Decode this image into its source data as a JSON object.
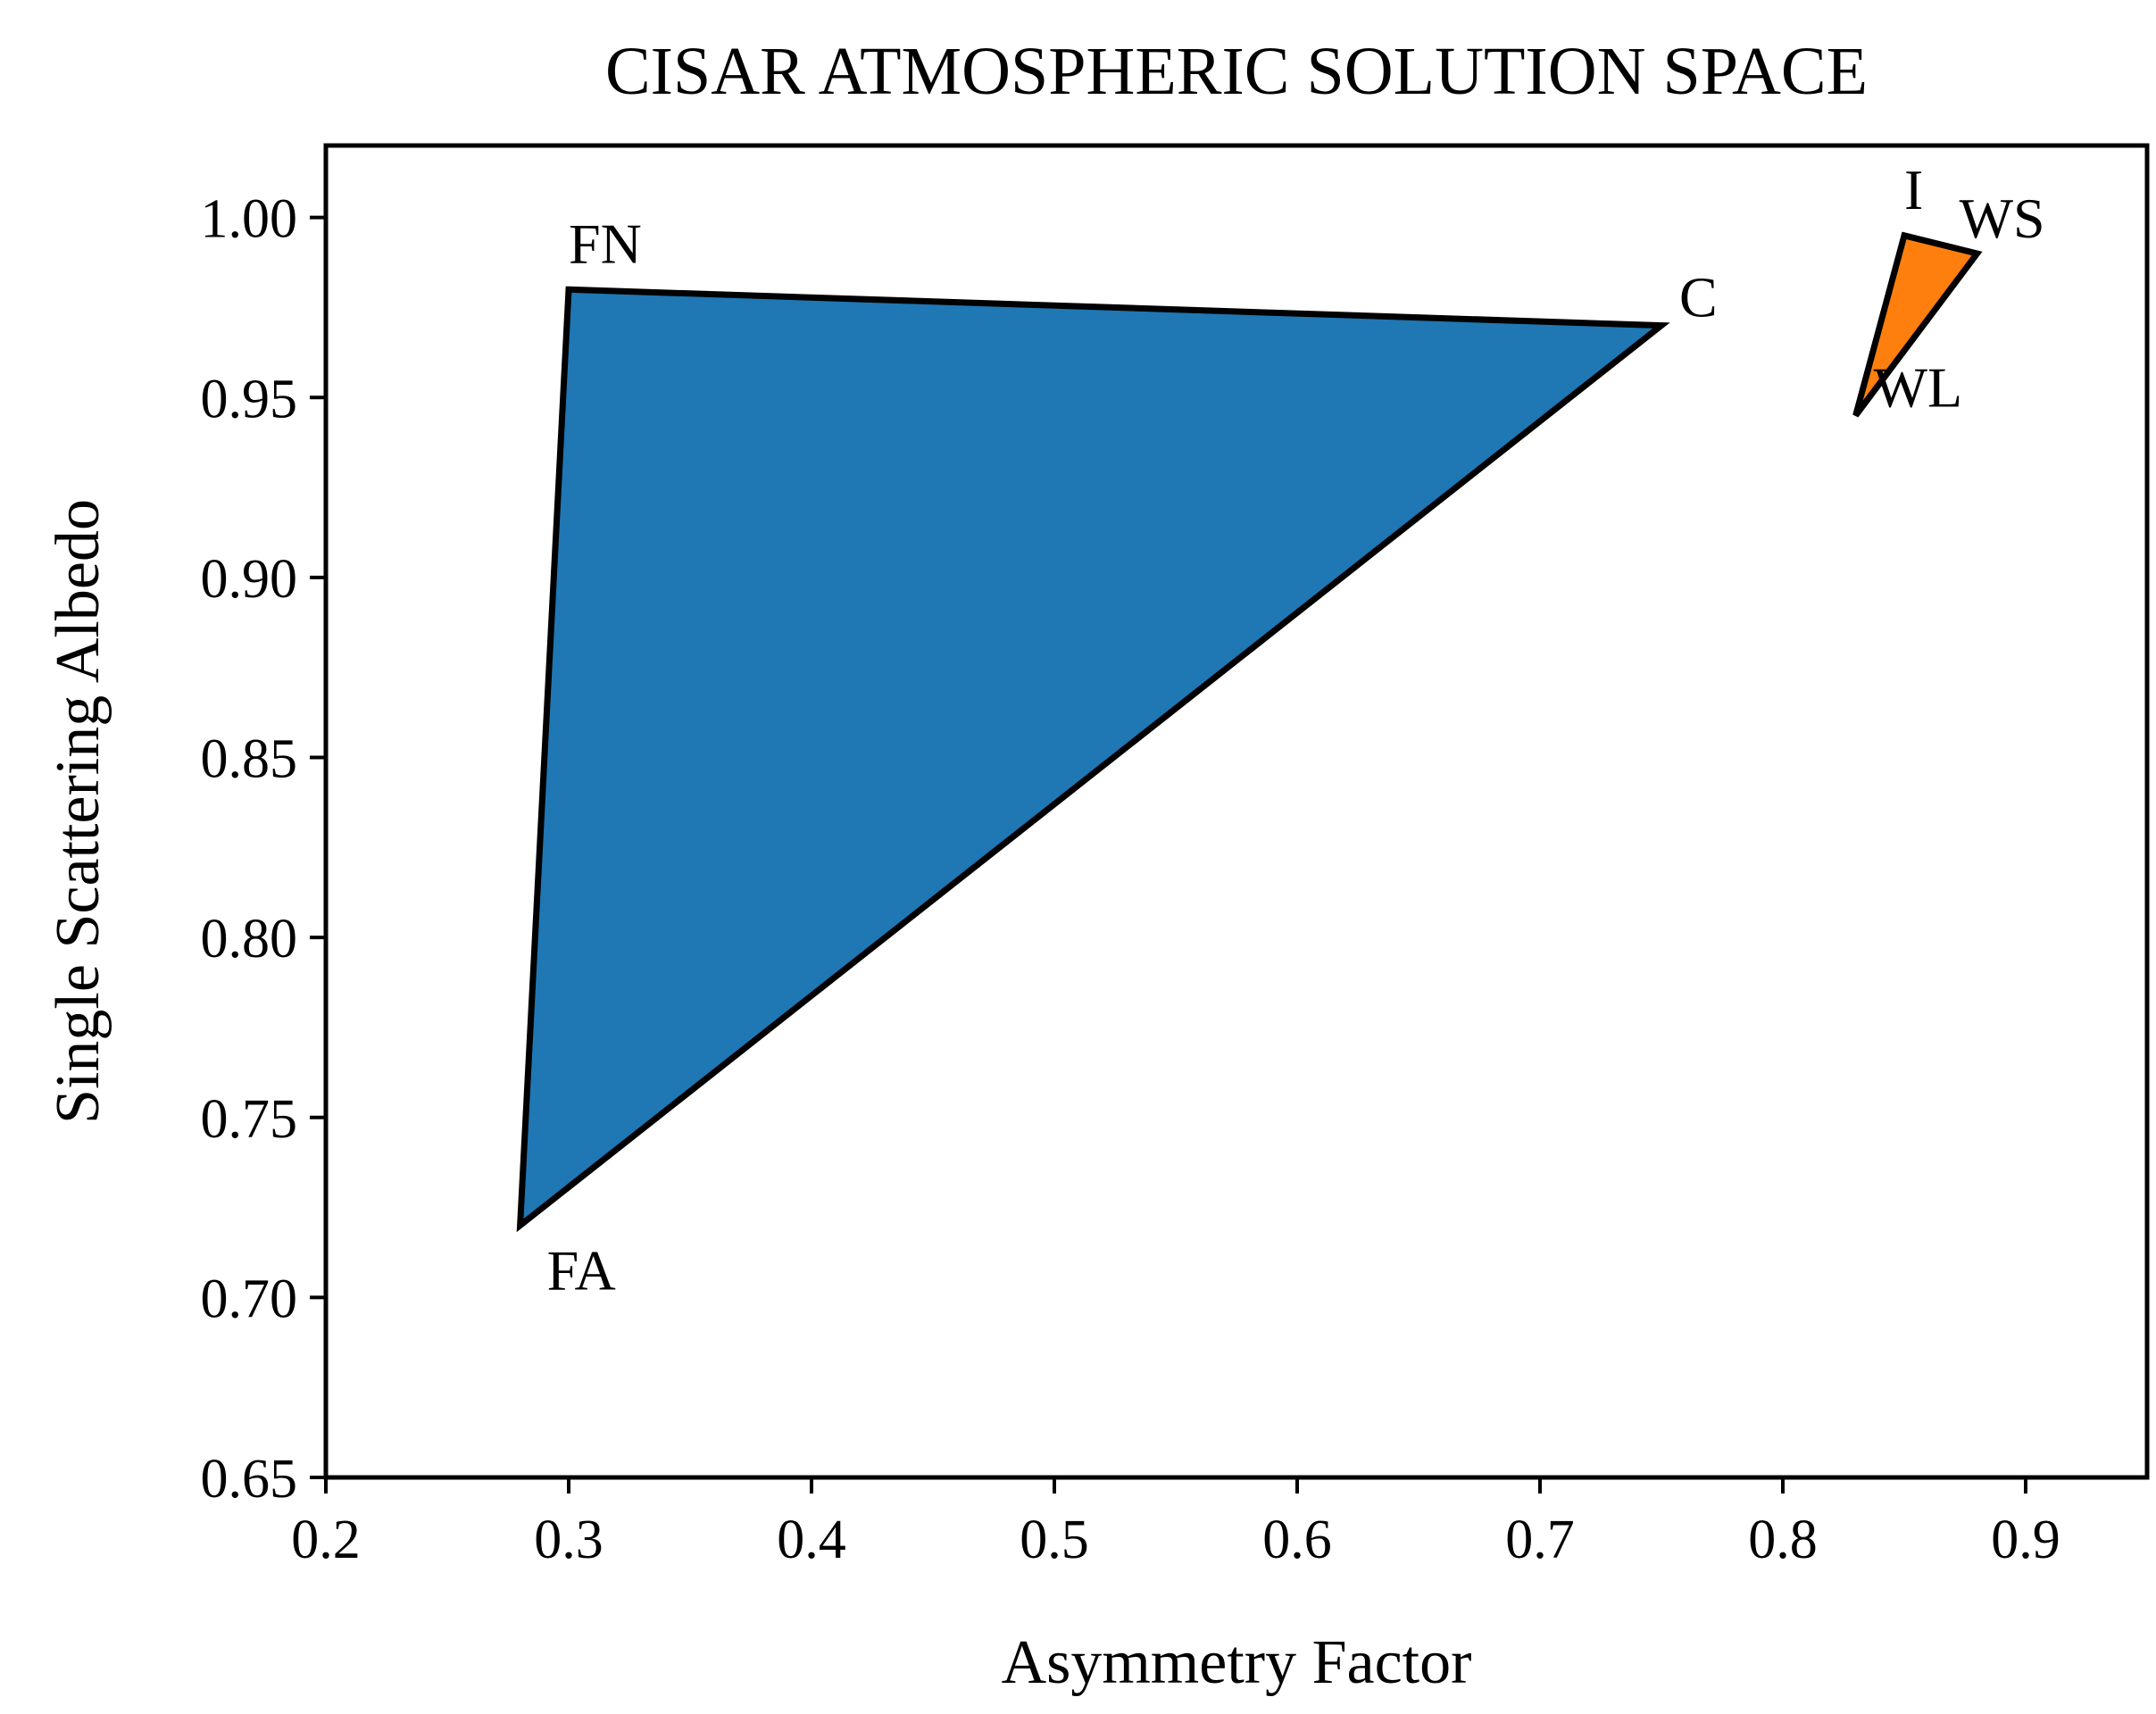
{
  "chart_data": {
    "type": "area",
    "title": "CISAR ATMOSPHERIC SOLUTION SPACE",
    "xlabel": "Asymmetry Factor",
    "ylabel": "Single Scattering Albedo",
    "xlim": [
      0.2,
      0.95
    ],
    "ylim": [
      0.65,
      1.02
    ],
    "xticks": [
      0.2,
      0.3,
      0.4,
      0.5,
      0.6,
      0.7,
      0.8,
      0.9
    ],
    "xtick_labels": [
      "0.2",
      "0.3",
      "0.4",
      "0.5",
      "0.6",
      "0.7",
      "0.8",
      "0.9"
    ],
    "yticks": [
      0.65,
      0.7,
      0.75,
      0.8,
      0.85,
      0.9,
      0.95,
      1.0
    ],
    "ytick_labels": [
      "0.65",
      "0.70",
      "0.75",
      "0.80",
      "0.85",
      "0.90",
      "0.95",
      "1.00"
    ],
    "grid": false,
    "polygons": [
      {
        "color": "#1f77b4",
        "edge_color": "#000000",
        "vertices": [
          {
            "label": "FN",
            "x": 0.3,
            "y": 0.98,
            "label_side": "above"
          },
          {
            "label": "C",
            "x": 0.75,
            "y": 0.97,
            "label_side": "right"
          },
          {
            "label": "FA",
            "x": 0.28,
            "y": 0.72,
            "label_side": "below-right"
          }
        ]
      },
      {
        "color": "#ff7f0e",
        "edge_color": "#000000",
        "vertices": [
          {
            "label": "I",
            "x": 0.85,
            "y": 0.995,
            "label_side": "above"
          },
          {
            "label": "WS",
            "x": 0.88,
            "y": 0.99,
            "label_side": "above-right"
          },
          {
            "label": "WL",
            "x": 0.83,
            "y": 0.945,
            "label_side": "right"
          }
        ]
      }
    ]
  }
}
